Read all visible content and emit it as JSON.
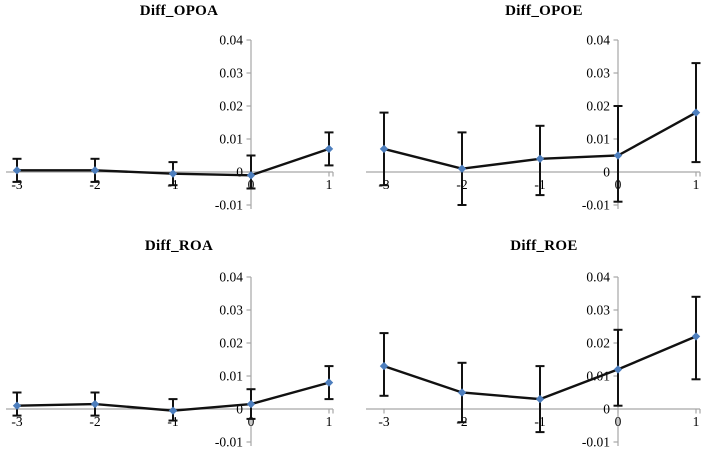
{
  "figure_title": "",
  "style": {
    "marker_color": "#4D7EBD",
    "line_color": "#111111",
    "error_bar_color": "#111111",
    "axis_color": "#A6A6A6",
    "text_color": "#000000"
  },
  "chart_data": [
    {
      "type": "line",
      "title": "Diff_OPOA",
      "x": [
        -3,
        -2,
        -1,
        0,
        1
      ],
      "x_tick_labels": [
        "-3",
        "-2",
        "-1",
        "0",
        "1"
      ],
      "y_tick_labels": [
        "0.04",
        "0.03",
        "0.02",
        "0.01",
        "0",
        "-0.01"
      ],
      "ylim": [
        -0.01,
        0.04
      ],
      "values": [
        0.0005,
        0.0005,
        -0.0005,
        -0.001,
        0.007
      ],
      "error_upper": [
        0.004,
        0.004,
        0.003,
        0.005,
        0.012
      ],
      "error_lower": [
        -0.003,
        -0.003,
        -0.004,
        -0.005,
        0.002
      ],
      "legend": [],
      "grid": false
    },
    {
      "type": "line",
      "title": "Diff_OPOE",
      "x": [
        -3,
        -2,
        -1,
        0,
        1
      ],
      "x_tick_labels": [
        "-3",
        "-2",
        "-1",
        "0",
        "1"
      ],
      "y_tick_labels": [
        "0.04",
        "0.03",
        "0.02",
        "0.01",
        "0",
        "-0.01"
      ],
      "ylim": [
        -0.01,
        0.04
      ],
      "values": [
        0.007,
        0.001,
        0.004,
        0.005,
        0.018
      ],
      "error_upper": [
        0.018,
        0.012,
        0.014,
        0.02,
        0.033
      ],
      "error_lower": [
        -0.004,
        -0.01,
        -0.007,
        -0.009,
        0.003
      ],
      "legend": [],
      "grid": false
    },
    {
      "type": "line",
      "title": "Diff_ROA",
      "x": [
        -3,
        -2,
        -1,
        0,
        1
      ],
      "x_tick_labels": [
        "-3",
        "-2",
        "-1",
        "0",
        "1"
      ],
      "y_tick_labels": [
        "0.04",
        "0.03",
        "0.02",
        "0.01",
        "0",
        "-0.01"
      ],
      "ylim": [
        -0.01,
        0.04
      ],
      "values": [
        0.001,
        0.0015,
        -0.0005,
        0.0015,
        0.008
      ],
      "error_upper": [
        0.005,
        0.005,
        0.003,
        0.006,
        0.013
      ],
      "error_lower": [
        -0.002,
        -0.002,
        -0.0035,
        -0.003,
        0.003
      ],
      "legend": [],
      "grid": false
    },
    {
      "type": "line",
      "title": "Diff_ROE",
      "x": [
        -3,
        -2,
        -1,
        0,
        1
      ],
      "x_tick_labels": [
        "-3",
        "-2",
        "-1",
        "0",
        "1"
      ],
      "y_tick_labels": [
        "0.04",
        "0.03",
        "0.02",
        "0.01",
        "0",
        "-0.01"
      ],
      "ylim": [
        -0.01,
        0.04
      ],
      "values": [
        0.013,
        0.005,
        0.003,
        0.012,
        0.022
      ],
      "error_upper": [
        0.023,
        0.014,
        0.013,
        0.024,
        0.034
      ],
      "error_lower": [
        0.004,
        -0.004,
        -0.007,
        0.001,
        0.009
      ],
      "legend": [],
      "grid": false
    }
  ]
}
